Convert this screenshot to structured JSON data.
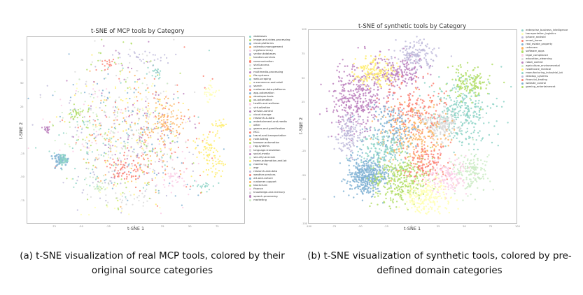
{
  "chart_data": [
    {
      "type": "scatter",
      "title": "t-SNE of MCP tools by Category",
      "xlabel": "t-SNE 1",
      "ylabel": "t-SNE 2",
      "xlim": [
        -100,
        100
      ],
      "ylim": [
        -100,
        100
      ],
      "xticks": [
        "-75",
        "-50",
        "-25",
        "0",
        "25",
        "50",
        "75"
      ],
      "yticks": [
        "-75",
        "-50",
        "-25",
        "0",
        "25",
        "50",
        "75"
      ],
      "grid": false,
      "legend_position": "right",
      "categories": [
        {
          "name": "databases",
          "color": "#8dd3c7"
        },
        {
          "name": "image-and-video-processing",
          "color": "#b3de69"
        },
        {
          "name": "cloud-platforms",
          "color": "#80b1d3"
        },
        {
          "name": "calendar-management",
          "color": "#fdb462"
        },
        {
          "name": "cryptocurrency",
          "color": "#fccde5"
        },
        {
          "name": "vector-databases",
          "color": "#bebada"
        },
        {
          "name": "location-services",
          "color": "#ffffb3"
        },
        {
          "name": "communication",
          "color": "#fb8072"
        },
        {
          "name": "shell-access",
          "color": "#d9d9d9"
        },
        {
          "name": "search",
          "color": "#ccebc5"
        },
        {
          "name": "multimedia-processing",
          "color": "#bc80bd"
        },
        {
          "name": "file-systems",
          "color": "#ffed6f"
        },
        {
          "name": "web-scraping",
          "color": "#8dd3c7"
        },
        {
          "name": "e-commerce-and-retail",
          "color": "#ffffb3"
        },
        {
          "name": "search",
          "color": "#bebada"
        },
        {
          "name": "customer-data-platforms",
          "color": "#fb8072"
        },
        {
          "name": "app-automation",
          "color": "#80b1d3"
        },
        {
          "name": "developer-tools",
          "color": "#fdb462"
        },
        {
          "name": "os-automation",
          "color": "#b3de69"
        },
        {
          "name": "health-and-wellness",
          "color": "#fccde5"
        },
        {
          "name": "virtualization",
          "color": "#d9d9d9"
        },
        {
          "name": "version-control",
          "color": "#bc80bd"
        },
        {
          "name": "cloud-storage",
          "color": "#ccebc5"
        },
        {
          "name": "research-&-data",
          "color": "#ffed6f"
        },
        {
          "name": "entertainment-and-media",
          "color": "#8dd3c7"
        },
        {
          "name": "other",
          "color": "#ffffb3"
        },
        {
          "name": "games-and-gamification",
          "color": "#bebada"
        },
        {
          "name": "MCC",
          "color": "#fb8072"
        },
        {
          "name": "travel-and-transportation",
          "color": "#80b1d3"
        },
        {
          "name": "note-taking",
          "color": "#fdb462"
        },
        {
          "name": "browser-automation",
          "color": "#b3de69"
        },
        {
          "name": "rag-systems",
          "color": "#fccde5"
        },
        {
          "name": "language-translation",
          "color": "#d9d9d9"
        },
        {
          "name": "social-media",
          "color": "#bc80bd"
        },
        {
          "name": "security-and-iam",
          "color": "#ccebc5"
        },
        {
          "name": "home-automation-and-iot",
          "color": "#ffed6f"
        },
        {
          "name": "monitoring",
          "color": "#8dd3c7"
        },
        {
          "name": "ergr",
          "color": "#ffffb3"
        },
        {
          "name": "research-and-data",
          "color": "#bebada"
        },
        {
          "name": "weather-services",
          "color": "#fb8072"
        },
        {
          "name": "art-and-culture",
          "color": "#80b1d3"
        },
        {
          "name": "customer-support",
          "color": "#fdb462"
        },
        {
          "name": "blockchain",
          "color": "#b3de69"
        },
        {
          "name": "finance",
          "color": "#fccde5"
        },
        {
          "name": "knowledge-and-memory",
          "color": "#d9d9d9"
        },
        {
          "name": "speech-processing",
          "color": "#bc80bd"
        },
        {
          "name": "marketing",
          "color": "#ccebc5"
        }
      ]
    },
    {
      "type": "scatter",
      "title": "t-SNE of synthetic tools by Category",
      "xlabel": "t-SNE 1",
      "ylabel": "t-SNE 2",
      "xlim": [
        -100,
        100
      ],
      "ylim": [
        -100,
        100
      ],
      "xticks": [
        "-100",
        "-75",
        "-50",
        "-25",
        "0",
        "25",
        "50",
        "75",
        "100"
      ],
      "yticks": [
        "-100",
        "-75",
        "-50",
        "-25",
        "0",
        "25",
        "50",
        "75",
        "100"
      ],
      "grid": false,
      "legend_position": "right",
      "categories": [
        {
          "name": "enterprise_business_intelligence",
          "color": "#8dd3c7"
        },
        {
          "name": "transportation_logistics",
          "color": "#ffffb3"
        },
        {
          "name": "iphone_android",
          "color": "#bebada"
        },
        {
          "name": "smart_home",
          "color": "#fb8072"
        },
        {
          "name": "real_estate_property",
          "color": "#80b1d3"
        },
        {
          "name": "unknown",
          "color": "#fdb462"
        },
        {
          "name": "software_apps",
          "color": "#b3de69"
        },
        {
          "name": "legal_compliance",
          "color": "#fccde5"
        },
        {
          "name": "education_elearning",
          "color": "#d9d9d9"
        },
        {
          "name": "robot_control",
          "color": "#bc80bd"
        },
        {
          "name": "agriculture_environmental",
          "color": "#ccebc5"
        },
        {
          "name": "healthcare_medical",
          "color": "#ffed6f"
        },
        {
          "name": "manufacturing_industrial_iot",
          "color": "#8dd3c7"
        },
        {
          "name": "desktop_systems",
          "color": "#bebada"
        },
        {
          "name": "financial_trading",
          "color": "#fb8072"
        },
        {
          "name": "website_control",
          "color": "#80b1d3"
        },
        {
          "name": "gaming_entertainment",
          "color": "#b3de69"
        }
      ]
    }
  ],
  "captions": {
    "a": "(a) t-SNE visualization of real MCP tools, colored by their original source categories",
    "a_line1": "(a)  t-SNE visualization of real MCP tools, colored by their",
    "a_line2": "original source categories",
    "b_line1": "(b)  t-SNE visualization of synthetic tools, colored by pre-",
    "b_line2": "defined domain categories"
  }
}
